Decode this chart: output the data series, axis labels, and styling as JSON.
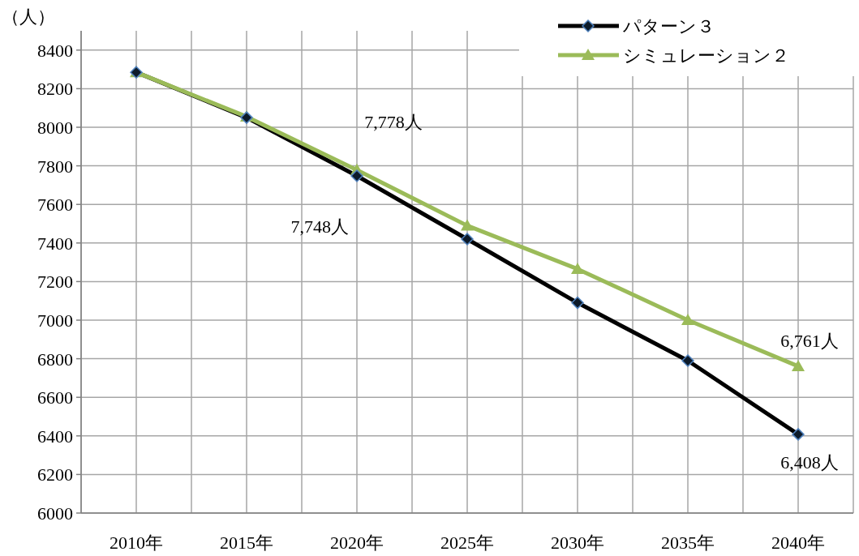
{
  "chart_data": {
    "type": "line",
    "ylabel": "（人）",
    "categories": [
      "2010年",
      "2015年",
      "2020年",
      "2025年",
      "2030年",
      "2035年",
      "2040年"
    ],
    "series": [
      {
        "name": "パターン３",
        "color": "#000000",
        "marker": "diamond",
        "values": [
          8285,
          8050,
          7748,
          7420,
          7090,
          6790,
          6408
        ],
        "value_labels": [
          null,
          null,
          "7,748人",
          null,
          null,
          null,
          "6,408人"
        ]
      },
      {
        "name": "シミュレーション２",
        "color": "#9bbb59",
        "marker": "triangle",
        "values": [
          8285,
          8055,
          7778,
          7490,
          7265,
          7000,
          6761
        ],
        "value_labels": [
          null,
          null,
          "7,778人",
          null,
          null,
          null,
          "6,761人"
        ]
      }
    ],
    "ylim": [
      6000,
      8500
    ],
    "yticks": [
      6000,
      6200,
      6400,
      6600,
      6800,
      7000,
      7200,
      7400,
      7600,
      7800,
      8000,
      8200,
      8400
    ],
    "grid": true,
    "legend": "top right"
  }
}
